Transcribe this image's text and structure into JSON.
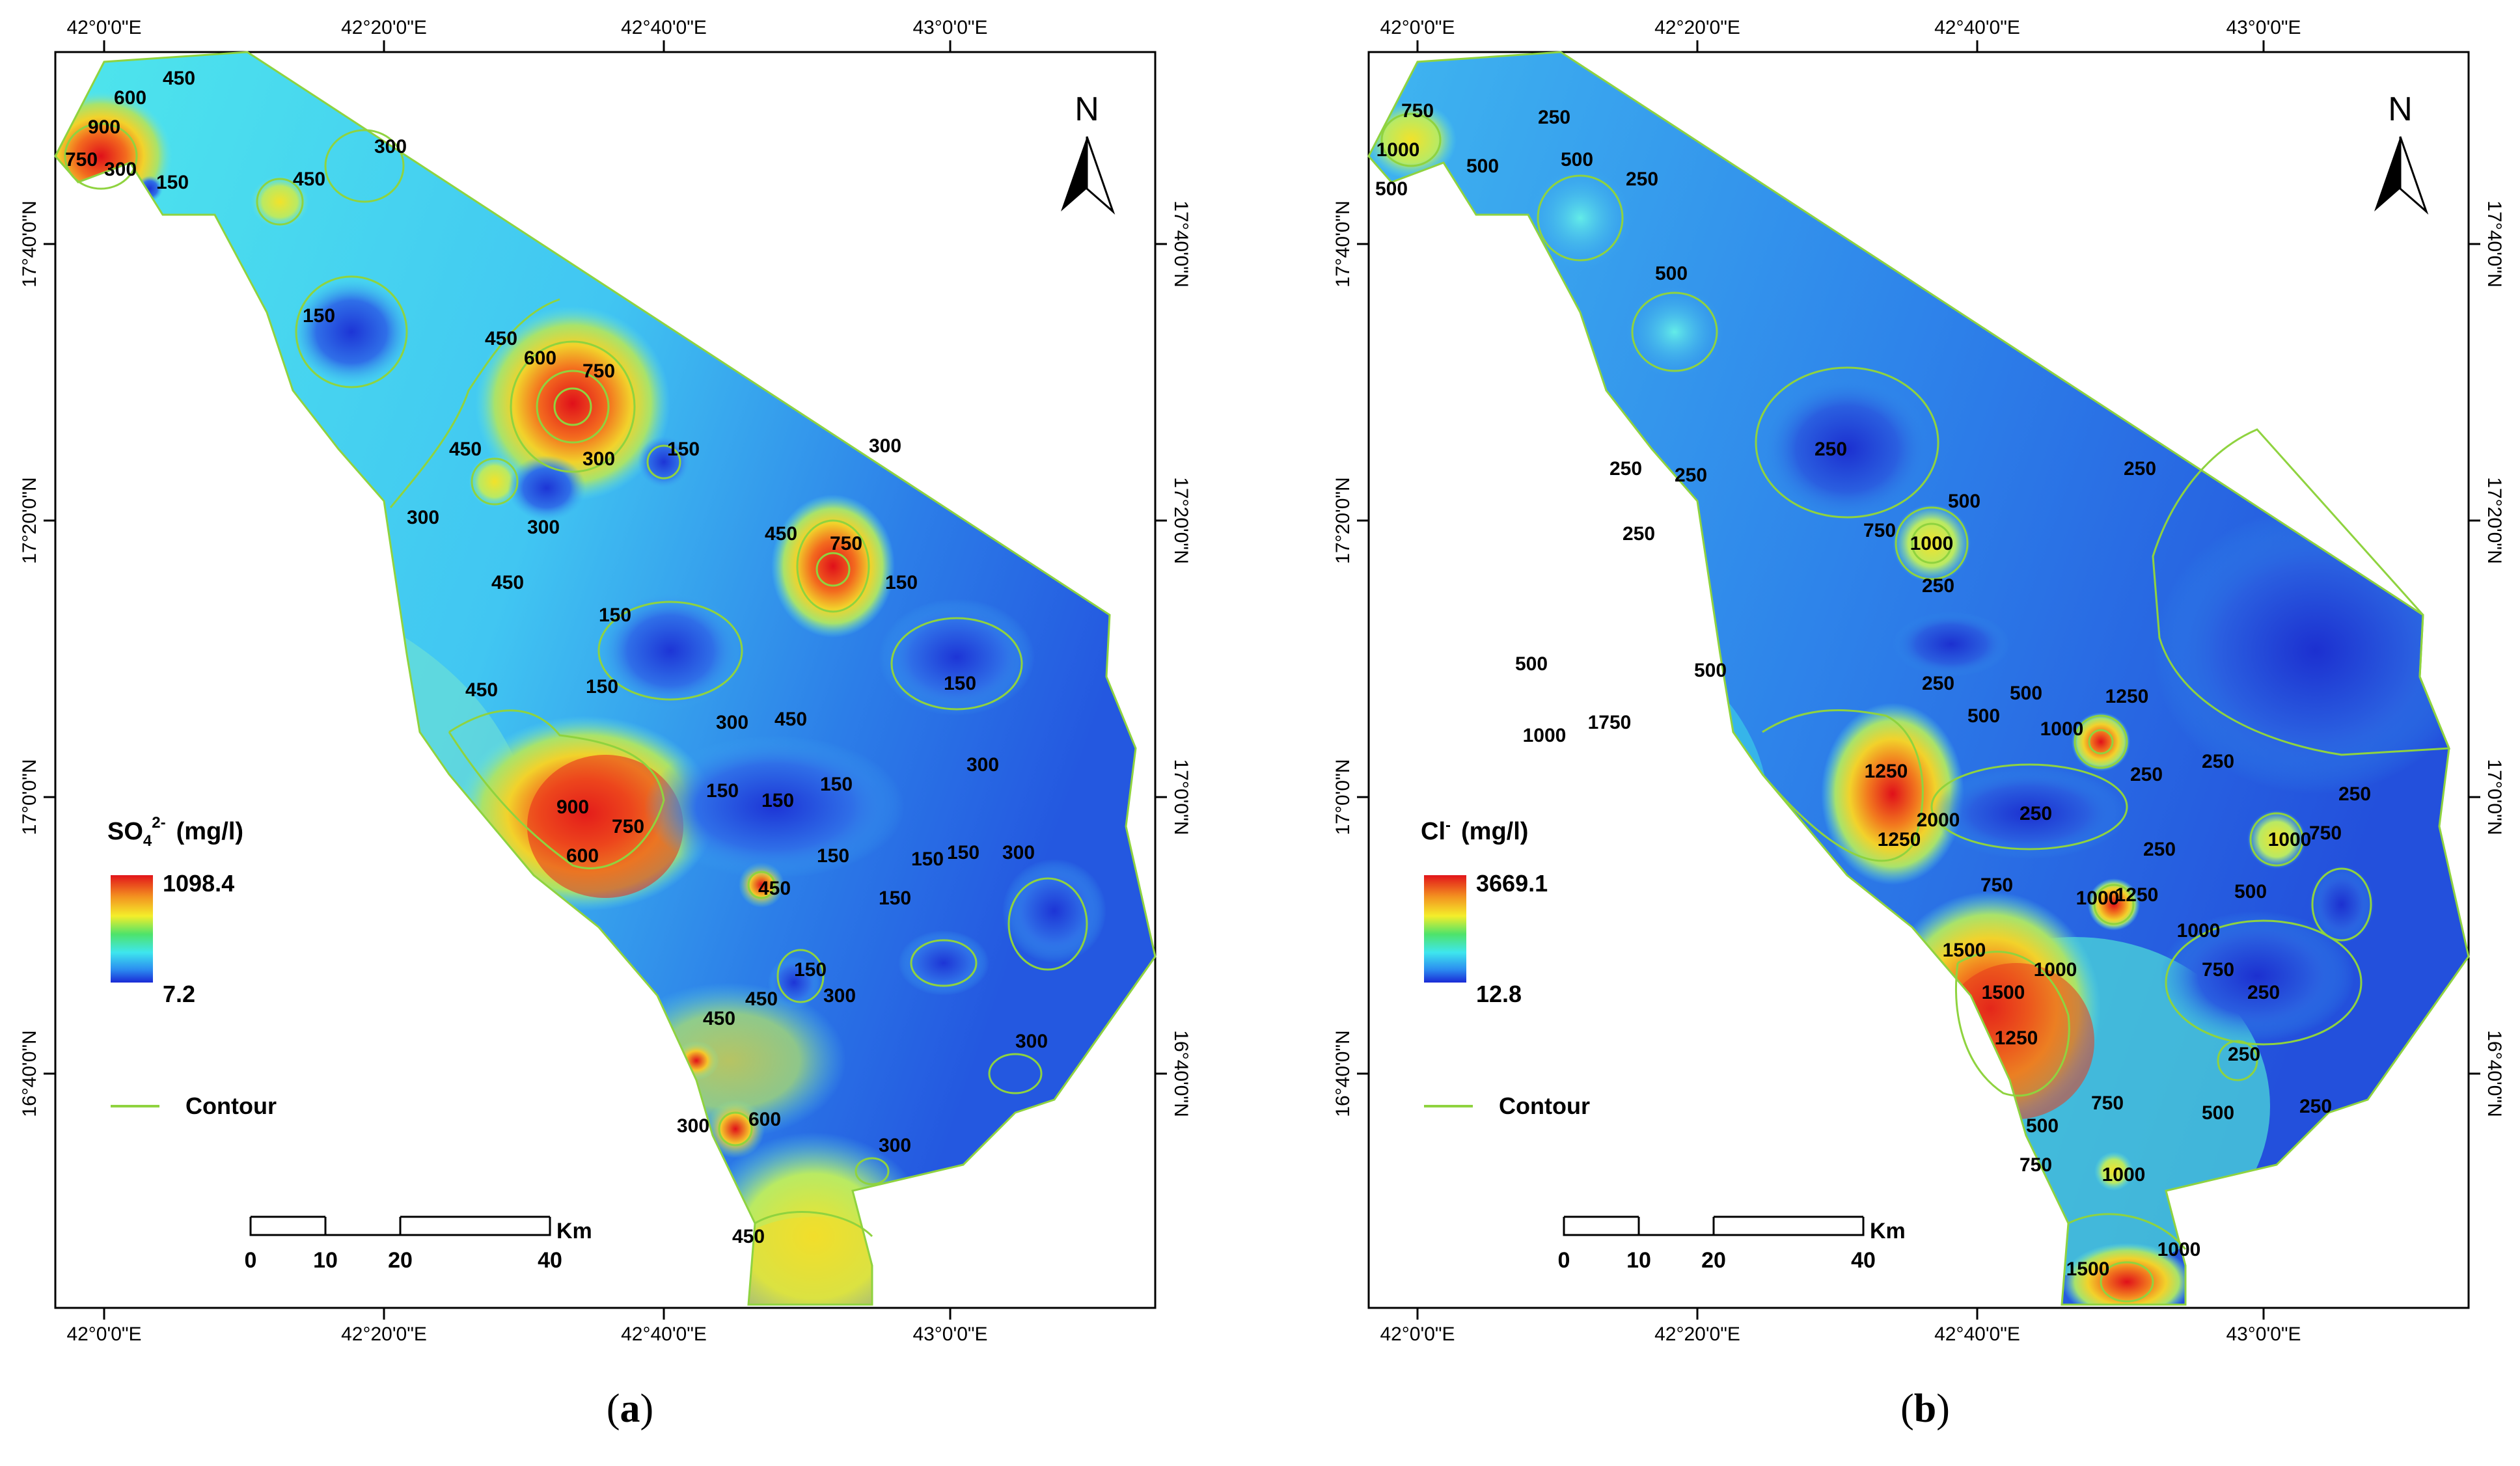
{
  "panels": [
    {
      "id": "a",
      "caption_open": "(",
      "caption_letter": "a",
      "caption_close": ")",
      "legend": {
        "title_main": "SO",
        "title_sub": "4",
        "title_sup": "2-",
        "title_unit": "(mg/l)",
        "max": "1098.4",
        "min": "7.2",
        "contour_label": "Contour"
      },
      "north": "N",
      "lon_ticks": [
        "42°0'0\"E",
        "42°20'0\"E",
        "42°40'0\"E",
        "43°0'0\"E"
      ],
      "lat_ticks": [
        "17°40'0\"N",
        "17°20'0\"N",
        "17°0'0\"N",
        "16°40'0\"N"
      ],
      "scale": {
        "ticks": [
          "0",
          "10",
          "20",
          "40"
        ],
        "unit": "Km"
      },
      "contour_labels": [
        "900",
        "750",
        "300",
        "600",
        "450",
        "150",
        "450",
        "300",
        "150",
        "450",
        "600",
        "750",
        "300",
        "450",
        "300",
        "450",
        "300",
        "150",
        "450",
        "750",
        "150",
        "150",
        "150",
        "450",
        "300",
        "450",
        "150",
        "150",
        "150",
        "300",
        "150",
        "150",
        "150",
        "300",
        "900",
        "750",
        "600",
        "450",
        "150",
        "150",
        "300",
        "450",
        "150",
        "450",
        "600",
        "300",
        "300",
        "450",
        "300"
      ],
      "highs": [
        "1098.4"
      ],
      "colors": {
        "high": "#e52319",
        "low": "#1e2fd6",
        "contour": "#8fd33f"
      }
    },
    {
      "id": "b",
      "caption_open": "(",
      "caption_letter": "b",
      "caption_close": ")",
      "legend": {
        "title_main": "Cl",
        "title_sub": "",
        "title_sup": "-",
        "title_unit": "(mg/l)",
        "max": "3669.1",
        "min": "12.8",
        "contour_label": "Contour"
      },
      "north": "N",
      "lon_ticks": [
        "42°0'0\"E",
        "42°20'0\"E",
        "42°40'0\"E",
        "43°0'0\"E"
      ],
      "lat_ticks": [
        "17°40'0\"N",
        "17°20'0\"N",
        "17°0'0\"N",
        "16°40'0\"N"
      ],
      "scale": {
        "ticks": [
          "0",
          "10",
          "20",
          "40"
        ],
        "unit": "Km"
      },
      "contour_labels": [
        "750",
        "1000",
        "500",
        "250",
        "500",
        "250",
        "500",
        "500",
        "250",
        "250",
        "250",
        "500",
        "250",
        "750",
        "1000",
        "250",
        "250",
        "500",
        "500",
        "1000",
        "1750",
        "1250",
        "1250",
        "2000",
        "250",
        "500",
        "1000",
        "1250",
        "250",
        "250",
        "500",
        "1000",
        "250",
        "750",
        "250",
        "500",
        "1000",
        "750",
        "1000",
        "1250",
        "1500",
        "1500",
        "1000",
        "1250",
        "750",
        "250",
        "500",
        "750",
        "750",
        "500",
        "1000",
        "250",
        "1500",
        "1000",
        "250",
        "250"
      ],
      "colors": {
        "high": "#e52319",
        "low": "#1e2fd6",
        "contour": "#8fd33f"
      }
    }
  ]
}
